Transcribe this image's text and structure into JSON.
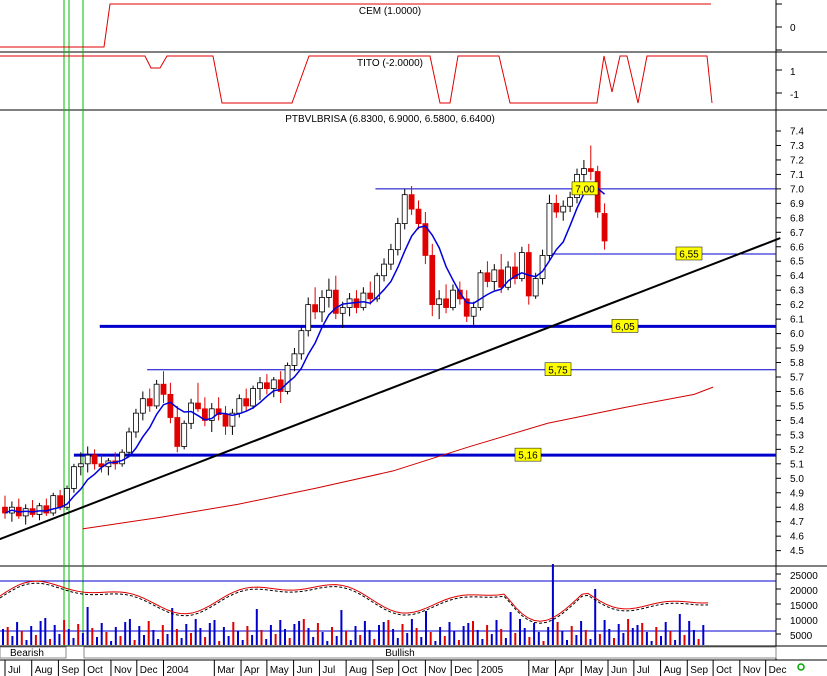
{
  "colors": {
    "up_candle": "#ffffff",
    "down_candle": "#e00000",
    "ma_line": "#0000dd",
    "long_ma": "#d00000",
    "trend_line": "#000000",
    "support_line": "#0000cc",
    "label_box": "#ffff00",
    "indicator_line": "#e00000",
    "volume_up": "#0000cc",
    "volume_down": "#e00000",
    "grid_h": "#0000cc",
    "green_marker": "#00bb00"
  },
  "panels": {
    "cem": {
      "title": "CEM (1.0000)",
      "ticks": [
        "0"
      ]
    },
    "tito": {
      "title": "TITO (-2.0000)",
      "ticks": [
        "1",
        "-1"
      ]
    },
    "price": {
      "title": "PTBVLBRISA (6.8300, 6.9000, 6.5800, 6.6400)"
    },
    "volume": {
      "ticks": [
        "25000",
        "20000",
        "15000",
        "10000",
        "5000"
      ]
    }
  },
  "status_bar": {
    "bearish": "Bearish",
    "bullish": "Bullish"
  },
  "chart_data": {
    "type": "candlestick",
    "title": "PTBVLBRISA (6.8300, 6.9000, 6.5800, 6.6400)",
    "ylim": [
      4.4,
      7.45
    ],
    "y_ticks": [
      "7.4",
      "7.3",
      "7.2",
      "7.1",
      "7.0",
      "6.9",
      "6.8",
      "6.7",
      "6.6",
      "6.5",
      "6.4",
      "6.3",
      "6.2",
      "6.1",
      "6.0",
      "5.9",
      "5.8",
      "5.7",
      "5.6",
      "5.5",
      "5.4",
      "5.3",
      "5.2",
      "5.1",
      "5.0",
      "4.9",
      "4.8",
      "4.7",
      "4.6",
      "4.5"
    ],
    "x_labels": [
      "Jul",
      "Aug",
      "Sep",
      "Oct",
      "Nov",
      "Dec",
      "2004",
      "Mar",
      "Apr",
      "May",
      "Jun",
      "Jul",
      "Aug",
      "Sep",
      "Oct",
      "Nov",
      "Dec",
      "2005",
      "Mar",
      "Apr",
      "May",
      "Jun",
      "Jul",
      "Aug",
      "Sep",
      "Oct",
      "Nov",
      "Dec"
    ],
    "x_label_days": [
      0,
      31,
      62,
      92,
      123,
      153,
      184,
      243,
      274,
      304,
      335,
      365,
      396,
      427,
      457,
      488,
      518,
      549,
      608,
      639,
      669,
      700,
      730,
      761,
      792,
      822,
      853,
      883
    ],
    "horizontal_levels": [
      {
        "value": 7.0,
        "label": "7,00",
        "from_day": 430,
        "width": "thin"
      },
      {
        "value": 6.55,
        "label": "6,55",
        "from_day": 635,
        "width": "thin"
      },
      {
        "value": 6.05,
        "label": "6,05",
        "from_day": 110,
        "width": "thick"
      },
      {
        "value": 5.75,
        "label": "5,75",
        "from_day": 165,
        "width": "thin"
      },
      {
        "value": 5.16,
        "label": "5,16",
        "from_day": 80,
        "width": "thick"
      }
    ],
    "trend_line": {
      "from": [
        -10,
        4.57
      ],
      "to": [
        900,
        6.66
      ]
    },
    "long_ma": [
      [
        90,
        4.65
      ],
      [
        180,
        4.73
      ],
      [
        270,
        4.82
      ],
      [
        360,
        4.93
      ],
      [
        450,
        5.05
      ],
      [
        540,
        5.22
      ],
      [
        630,
        5.38
      ],
      [
        720,
        5.49
      ],
      [
        800,
        5.58
      ],
      [
        822,
        5.63
      ]
    ],
    "ohlc": [
      {
        "d": 0,
        "o": 4.8,
        "h": 4.88,
        "l": 4.72,
        "c": 4.76
      },
      {
        "d": 8,
        "o": 4.76,
        "h": 4.84,
        "l": 4.7,
        "c": 4.8
      },
      {
        "d": 16,
        "o": 4.8,
        "h": 4.86,
        "l": 4.72,
        "c": 4.74
      },
      {
        "d": 24,
        "o": 4.74,
        "h": 4.82,
        "l": 4.68,
        "c": 4.79
      },
      {
        "d": 32,
        "o": 4.79,
        "h": 4.85,
        "l": 4.73,
        "c": 4.75
      },
      {
        "d": 40,
        "o": 4.75,
        "h": 4.83,
        "l": 4.71,
        "c": 4.81
      },
      {
        "d": 48,
        "o": 4.81,
        "h": 4.86,
        "l": 4.74,
        "c": 4.76
      },
      {
        "d": 56,
        "o": 4.76,
        "h": 4.9,
        "l": 4.74,
        "c": 4.88
      },
      {
        "d": 64,
        "o": 4.88,
        "h": 4.92,
        "l": 4.78,
        "c": 4.8
      },
      {
        "d": 72,
        "o": 4.8,
        "h": 4.95,
        "l": 4.78,
        "c": 4.93
      },
      {
        "d": 80,
        "o": 4.93,
        "h": 5.1,
        "l": 4.9,
        "c": 5.08
      },
      {
        "d": 88,
        "o": 5.08,
        "h": 5.18,
        "l": 5.02,
        "c": 5.1
      },
      {
        "d": 96,
        "o": 5.1,
        "h": 5.22,
        "l": 5.04,
        "c": 5.16
      },
      {
        "d": 104,
        "o": 5.16,
        "h": 5.2,
        "l": 5.06,
        "c": 5.1
      },
      {
        "d": 112,
        "o": 5.1,
        "h": 5.16,
        "l": 5.04,
        "c": 5.08
      },
      {
        "d": 120,
        "o": 5.08,
        "h": 5.14,
        "l": 5.02,
        "c": 5.12
      },
      {
        "d": 128,
        "o": 5.12,
        "h": 5.18,
        "l": 5.06,
        "c": 5.1
      },
      {
        "d": 136,
        "o": 5.1,
        "h": 5.2,
        "l": 5.08,
        "c": 5.18
      },
      {
        "d": 144,
        "o": 5.18,
        "h": 5.35,
        "l": 5.16,
        "c": 5.32
      },
      {
        "d": 152,
        "o": 5.32,
        "h": 5.48,
        "l": 5.28,
        "c": 5.45
      },
      {
        "d": 160,
        "o": 5.45,
        "h": 5.6,
        "l": 5.4,
        "c": 5.55
      },
      {
        "d": 168,
        "o": 5.55,
        "h": 5.62,
        "l": 5.46,
        "c": 5.5
      },
      {
        "d": 176,
        "o": 5.5,
        "h": 5.68,
        "l": 5.48,
        "c": 5.65
      },
      {
        "d": 184,
        "o": 5.65,
        "h": 5.74,
        "l": 5.52,
        "c": 5.58
      },
      {
        "d": 192,
        "o": 5.58,
        "h": 5.66,
        "l": 5.38,
        "c": 5.42
      },
      {
        "d": 200,
        "o": 5.42,
        "h": 5.5,
        "l": 5.18,
        "c": 5.22
      },
      {
        "d": 208,
        "o": 5.22,
        "h": 5.4,
        "l": 5.2,
        "c": 5.38
      },
      {
        "d": 216,
        "o": 5.38,
        "h": 5.55,
        "l": 5.34,
        "c": 5.52
      },
      {
        "d": 224,
        "o": 5.52,
        "h": 5.66,
        "l": 5.46,
        "c": 5.48
      },
      {
        "d": 232,
        "o": 5.48,
        "h": 5.56,
        "l": 5.36,
        "c": 5.4
      },
      {
        "d": 240,
        "o": 5.4,
        "h": 5.52,
        "l": 5.32,
        "c": 5.48
      },
      {
        "d": 248,
        "o": 5.48,
        "h": 5.56,
        "l": 5.4,
        "c": 5.44
      },
      {
        "d": 256,
        "o": 5.44,
        "h": 5.5,
        "l": 5.3,
        "c": 5.36
      },
      {
        "d": 264,
        "o": 5.36,
        "h": 5.48,
        "l": 5.3,
        "c": 5.45
      },
      {
        "d": 272,
        "o": 5.45,
        "h": 5.58,
        "l": 5.42,
        "c": 5.55
      },
      {
        "d": 280,
        "o": 5.55,
        "h": 5.62,
        "l": 5.46,
        "c": 5.5
      },
      {
        "d": 288,
        "o": 5.5,
        "h": 5.64,
        "l": 5.48,
        "c": 5.62
      },
      {
        "d": 296,
        "o": 5.62,
        "h": 5.7,
        "l": 5.54,
        "c": 5.66
      },
      {
        "d": 304,
        "o": 5.66,
        "h": 5.72,
        "l": 5.58,
        "c": 5.62
      },
      {
        "d": 312,
        "o": 5.62,
        "h": 5.7,
        "l": 5.56,
        "c": 5.68
      },
      {
        "d": 320,
        "o": 5.68,
        "h": 5.74,
        "l": 5.52,
        "c": 5.6
      },
      {
        "d": 328,
        "o": 5.6,
        "h": 5.8,
        "l": 5.58,
        "c": 5.78
      },
      {
        "d": 336,
        "o": 5.78,
        "h": 5.9,
        "l": 5.74,
        "c": 5.86
      },
      {
        "d": 344,
        "o": 5.86,
        "h": 6.05,
        "l": 5.82,
        "c": 6.02
      },
      {
        "d": 352,
        "o": 6.02,
        "h": 6.25,
        "l": 5.98,
        "c": 6.2
      },
      {
        "d": 360,
        "o": 6.2,
        "h": 6.32,
        "l": 6.1,
        "c": 6.15
      },
      {
        "d": 368,
        "o": 6.15,
        "h": 6.3,
        "l": 6.08,
        "c": 6.25
      },
      {
        "d": 376,
        "o": 6.25,
        "h": 6.38,
        "l": 6.18,
        "c": 6.3
      },
      {
        "d": 384,
        "o": 6.3,
        "h": 6.4,
        "l": 6.1,
        "c": 6.14
      },
      {
        "d": 392,
        "o": 6.14,
        "h": 6.22,
        "l": 6.04,
        "c": 6.18
      },
      {
        "d": 400,
        "o": 6.18,
        "h": 6.28,
        "l": 6.12,
        "c": 6.24
      },
      {
        "d": 408,
        "o": 6.24,
        "h": 6.3,
        "l": 6.14,
        "c": 6.18
      },
      {
        "d": 416,
        "o": 6.18,
        "h": 6.32,
        "l": 6.16,
        "c": 6.28
      },
      {
        "d": 424,
        "o": 6.28,
        "h": 6.36,
        "l": 6.2,
        "c": 6.24
      },
      {
        "d": 432,
        "o": 6.24,
        "h": 6.42,
        "l": 6.22,
        "c": 6.4
      },
      {
        "d": 440,
        "o": 6.4,
        "h": 6.52,
        "l": 6.36,
        "c": 6.48
      },
      {
        "d": 448,
        "o": 6.48,
        "h": 6.62,
        "l": 6.44,
        "c": 6.58
      },
      {
        "d": 456,
        "o": 6.58,
        "h": 6.8,
        "l": 6.54,
        "c": 6.76
      },
      {
        "d": 464,
        "o": 6.76,
        "h": 7.0,
        "l": 6.72,
        "c": 6.96
      },
      {
        "d": 472,
        "o": 6.96,
        "h": 7.02,
        "l": 6.82,
        "c": 6.86
      },
      {
        "d": 480,
        "o": 6.86,
        "h": 6.92,
        "l": 6.72,
        "c": 6.76
      },
      {
        "d": 488,
        "o": 6.76,
        "h": 6.84,
        "l": 6.48,
        "c": 6.54
      },
      {
        "d": 496,
        "o": 6.54,
        "h": 6.62,
        "l": 6.12,
        "c": 6.2
      },
      {
        "d": 504,
        "o": 6.2,
        "h": 6.3,
        "l": 6.1,
        "c": 6.24
      },
      {
        "d": 512,
        "o": 6.24,
        "h": 6.34,
        "l": 6.14,
        "c": 6.18
      },
      {
        "d": 520,
        "o": 6.18,
        "h": 6.34,
        "l": 6.16,
        "c": 6.3
      },
      {
        "d": 528,
        "o": 6.3,
        "h": 6.36,
        "l": 6.2,
        "c": 6.24
      },
      {
        "d": 536,
        "o": 6.24,
        "h": 6.3,
        "l": 6.08,
        "c": 6.12
      },
      {
        "d": 544,
        "o": 6.12,
        "h": 6.22,
        "l": 6.06,
        "c": 6.18
      },
      {
        "d": 552,
        "o": 6.18,
        "h": 6.44,
        "l": 6.16,
        "c": 6.42
      },
      {
        "d": 560,
        "o": 6.42,
        "h": 6.5,
        "l": 6.32,
        "c": 6.36
      },
      {
        "d": 568,
        "o": 6.36,
        "h": 6.48,
        "l": 6.3,
        "c": 6.44
      },
      {
        "d": 576,
        "o": 6.44,
        "h": 6.55,
        "l": 6.28,
        "c": 6.32
      },
      {
        "d": 584,
        "o": 6.32,
        "h": 6.5,
        "l": 6.3,
        "c": 6.46
      },
      {
        "d": 592,
        "o": 6.46,
        "h": 6.56,
        "l": 6.34,
        "c": 6.38
      },
      {
        "d": 600,
        "o": 6.38,
        "h": 6.6,
        "l": 6.36,
        "c": 6.56
      },
      {
        "d": 608,
        "o": 6.56,
        "h": 6.62,
        "l": 6.2,
        "c": 6.26
      },
      {
        "d": 616,
        "o": 6.26,
        "h": 6.42,
        "l": 6.24,
        "c": 6.38
      },
      {
        "d": 624,
        "o": 6.38,
        "h": 6.58,
        "l": 6.34,
        "c": 6.54
      },
      {
        "d": 632,
        "o": 6.54,
        "h": 6.96,
        "l": 6.5,
        "c": 6.9
      },
      {
        "d": 640,
        "o": 6.9,
        "h": 6.96,
        "l": 6.8,
        "c": 6.84
      },
      {
        "d": 648,
        "o": 6.84,
        "h": 6.92,
        "l": 6.78,
        "c": 6.88
      },
      {
        "d": 656,
        "o": 6.88,
        "h": 6.98,
        "l": 6.84,
        "c": 6.94
      },
      {
        "d": 664,
        "o": 6.94,
        "h": 7.14,
        "l": 6.9,
        "c": 7.1
      },
      {
        "d": 672,
        "o": 7.1,
        "h": 7.2,
        "l": 7.04,
        "c": 7.14
      },
      {
        "d": 680,
        "o": 7.14,
        "h": 7.3,
        "l": 7.06,
        "c": 7.12
      },
      {
        "d": 688,
        "o": 7.12,
        "h": 7.16,
        "l": 6.8,
        "c": 6.84
      },
      {
        "d": 696,
        "o": 6.83,
        "h": 6.9,
        "l": 6.58,
        "c": 6.64
      }
    ]
  }
}
